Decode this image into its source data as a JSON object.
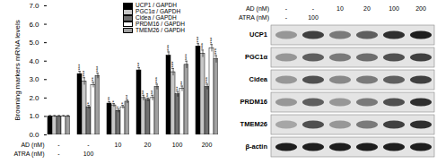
{
  "chart_data": [
    {
      "type": "bar",
      "ylabel": "Browning markers mRNA levels",
      "category_rows": [
        {
          "label": "AD (nM)",
          "values": [
            "-",
            "-",
            "10",
            "20",
            "100",
            "200"
          ]
        },
        {
          "label": "ATRA (nM)",
          "values": [
            "-",
            "100",
            null,
            null,
            null,
            null
          ]
        }
      ],
      "series": [
        {
          "name": "UCP1 / GAPDH",
          "color": "#000000",
          "values": [
            1,
            3.3,
            1.7,
            3.5,
            4.3,
            4.8
          ],
          "errors": [
            0.05,
            0.15,
            0.1,
            0.15,
            0.2,
            0.15
          ],
          "significance": [
            null,
            "***",
            "**",
            "**",
            "***",
            "***"
          ]
        },
        {
          "name": "PGC1α / GAPDH",
          "color": "#c8c8c8",
          "values": [
            1,
            2.9,
            1.6,
            2.0,
            3.4,
            4.4
          ],
          "errors": [
            0.05,
            0.2,
            0.1,
            0.15,
            0.2,
            0.2
          ],
          "significance": [
            null,
            "***",
            "*",
            "**",
            "***",
            "***"
          ]
        },
        {
          "name": "Cidea / GAPDH",
          "color": "#707070",
          "values": [
            1,
            1.5,
            1.3,
            1.9,
            2.2,
            2.6
          ],
          "errors": [
            0.05,
            0.1,
            0.1,
            0.1,
            0.15,
            0.15
          ],
          "significance": [
            null,
            "*",
            "*",
            "**",
            "**",
            "***"
          ]
        },
        {
          "name": "PRDM16 / GAPDH",
          "color": "#ffffff",
          "values": [
            1,
            2.7,
            1.5,
            2.0,
            2.5,
            4.7
          ],
          "errors": [
            0.05,
            0.15,
            0.1,
            0.15,
            0.15,
            0.2
          ],
          "significance": [
            null,
            "**",
            "*",
            "**",
            "**",
            "***"
          ]
        },
        {
          "name": "TMEM26 / GAPDH",
          "color": "#a0a0a0",
          "values": [
            1,
            3.2,
            1.8,
            2.6,
            3.8,
            4.1
          ],
          "errors": [
            0.05,
            0.15,
            0.1,
            0.15,
            0.2,
            0.2
          ],
          "significance": [
            null,
            "***",
            "**",
            "***",
            "***",
            "***"
          ]
        }
      ],
      "ylim": [
        0,
        7
      ],
      "yticks": [
        0,
        1,
        2,
        3,
        4,
        5,
        6,
        7
      ],
      "legend": "top-right"
    },
    {
      "type": "blot",
      "header": [
        {
          "label": "AD (nM)",
          "values": [
            "-",
            "-",
            "10",
            "20",
            "100",
            "200"
          ]
        },
        {
          "label": "ATRA (nM)",
          "values": [
            "-",
            "100",
            null,
            null,
            null,
            null
          ]
        }
      ],
      "rows": [
        "UCP1",
        "PGC1α",
        "Cidea",
        "PRDM16",
        "TMEM26",
        "β-actin"
      ],
      "bands": [
        [
          0.5,
          0.8,
          0.6,
          0.7,
          0.85,
          0.9
        ],
        [
          0.5,
          0.7,
          0.6,
          0.65,
          0.75,
          0.8
        ],
        [
          0.5,
          0.75,
          0.55,
          0.6,
          0.7,
          0.8
        ],
        [
          0.5,
          0.7,
          0.5,
          0.6,
          0.75,
          0.85
        ],
        [
          0.45,
          0.75,
          0.5,
          0.6,
          0.8,
          0.85
        ],
        [
          0.9,
          0.9,
          0.9,
          0.9,
          0.9,
          0.9
        ]
      ]
    }
  ]
}
